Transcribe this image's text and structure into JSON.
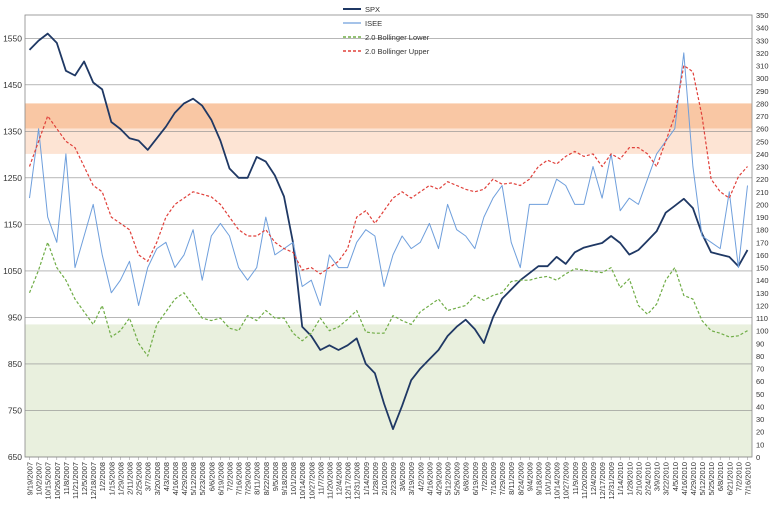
{
  "chart_data": {
    "type": "line",
    "x_dates": [
      "9/19/2007",
      "10/2/2007",
      "10/15/2007",
      "10/26/2007",
      "11/8/2007",
      "11/21/2007",
      "12/5/2007",
      "12/18/2007",
      "1/2/2008",
      "1/15/2008",
      "1/29/2008",
      "2/11/2008",
      "2/25/2008",
      "3/7/2008",
      "3/20/2008",
      "4/3/2008",
      "4/16/2008",
      "4/29/2008",
      "5/12/2008",
      "5/23/2008",
      "6/6/2008",
      "6/19/2008",
      "7/2/2008",
      "7/16/2008",
      "7/29/2008",
      "8/11/2008",
      "8/22/2008",
      "9/5/2008",
      "9/18/2008",
      "10/1/2008",
      "10/14/2008",
      "10/27/2008",
      "11/7/2008",
      "11/20/2008",
      "12/4/2008",
      "12/17/2008",
      "12/31/2008",
      "1/14/2009",
      "1/28/2009",
      "2/10/2009",
      "2/23/2009",
      "3/6/2009",
      "3/19/2009",
      "4/2/2009",
      "4/16/2009",
      "4/29/2009",
      "5/12/2009",
      "5/26/2009",
      "6/8/2009",
      "6/19/2009",
      "7/2/2009",
      "7/16/2009",
      "7/29/2009",
      "8/11/2009",
      "8/24/2009",
      "9/4/2009",
      "9/18/2009",
      "10/1/2009",
      "10/14/2009",
      "10/27/2009",
      "11/9/2009",
      "11/20/2009",
      "12/4/2009",
      "12/17/2009",
      "12/31/2009",
      "1/14/2010",
      "1/28/2010",
      "2/10/2010",
      "2/24/2010",
      "3/9/2010",
      "3/22/2010",
      "4/5/2010",
      "4/16/2010",
      "4/29/2010",
      "5/12/2010",
      "5/25/2010",
      "6/8/2010",
      "6/21/2010",
      "7/2/2010",
      "7/16/2010"
    ],
    "left_axis": {
      "ylim": [
        650,
        1600
      ],
      "ticks": [
        650,
        750,
        850,
        950,
        1050,
        1150,
        1250,
        1350,
        1450,
        1550
      ]
    },
    "right_axis": {
      "ylim": [
        0,
        350
      ],
      "ticks": [
        0,
        10,
        20,
        30,
        40,
        50,
        60,
        70,
        80,
        90,
        100,
        110,
        120,
        130,
        140,
        150,
        160,
        170,
        180,
        190,
        200,
        210,
        220,
        230,
        240,
        250,
        260,
        270,
        280,
        290,
        300,
        310,
        320,
        330,
        340,
        350
      ]
    },
    "bands": [
      {
        "axis": "right",
        "from": 260,
        "to": 280,
        "color": "#f9c7a4"
      },
      {
        "axis": "right",
        "from": 240,
        "to": 260,
        "color": "#fde4d4"
      },
      {
        "axis": "right",
        "from": 0,
        "to": 105,
        "color": "#e9f0de"
      }
    ],
    "series": [
      {
        "name": "SPX",
        "axis": "left",
        "color": "#1f3864",
        "width": 1.8,
        "dash": "",
        "values": [
          1525,
          1545,
          1560,
          1540,
          1480,
          1470,
          1500,
          1455,
          1440,
          1370,
          1355,
          1335,
          1330,
          1310,
          1335,
          1360,
          1390,
          1410,
          1420,
          1405,
          1375,
          1330,
          1270,
          1250,
          1250,
          1295,
          1285,
          1255,
          1210,
          1110,
          930,
          910,
          880,
          890,
          880,
          890,
          905,
          850,
          830,
          765,
          710,
          760,
          815,
          840,
          860,
          880,
          910,
          930,
          945,
          925,
          895,
          950,
          990,
          1010,
          1030,
          1045,
          1060,
          1060,
          1080,
          1065,
          1090,
          1100,
          1105,
          1110,
          1125,
          1110,
          1085,
          1095,
          1115,
          1135,
          1175,
          1190,
          1205,
          1185,
          1130,
          1090,
          1085,
          1080,
          1060,
          1095
        ]
      },
      {
        "name": "ISEE",
        "axis": "right",
        "color": "#6f9fdc",
        "width": 1,
        "dash": "",
        "values": [
          205,
          260,
          190,
          170,
          240,
          150,
          175,
          200,
          160,
          130,
          140,
          155,
          120,
          150,
          165,
          170,
          150,
          160,
          180,
          140,
          175,
          185,
          175,
          150,
          140,
          150,
          190,
          160,
          165,
          170,
          135,
          140,
          120,
          160,
          150,
          150,
          170,
          180,
          175,
          135,
          160,
          175,
          165,
          170,
          185,
          165,
          200,
          180,
          175,
          165,
          190,
          205,
          215,
          170,
          150,
          200,
          200,
          200,
          220,
          215,
          200,
          200,
          230,
          205,
          240,
          195,
          205,
          200,
          220,
          240,
          250,
          260,
          320,
          230,
          175,
          170,
          165,
          210,
          150,
          215
        ]
      },
      {
        "name": "2.0 Bollinger Lower",
        "axis": "right",
        "color": "#70ad47",
        "width": 1.2,
        "dash": "3,2",
        "values": [
          130,
          148,
          170,
          150,
          140,
          125,
          115,
          105,
          120,
          95,
          100,
          110,
          90,
          80,
          105,
          115,
          125,
          130,
          120,
          110,
          108,
          110,
          102,
          100,
          112,
          108,
          116,
          110,
          110,
          98,
          92,
          98,
          110,
          100,
          103,
          109,
          116,
          99,
          98,
          98,
          112,
          108,
          105,
          115,
          120,
          125,
          116,
          118,
          120,
          128,
          124,
          128,
          130,
          139,
          140,
          140,
          142,
          143,
          140,
          145,
          149,
          148,
          147,
          146,
          150,
          134,
          141,
          120,
          113,
          121,
          140,
          150,
          128,
          125,
          108,
          100,
          98,
          95,
          96,
          100
        ]
      },
      {
        "name": "2.0 Bollinger Upper",
        "axis": "right",
        "color": "#e0403a",
        "width": 1.2,
        "dash": "3,2",
        "values": [
          230,
          250,
          270,
          260,
          250,
          245,
          230,
          215,
          210,
          190,
          185,
          180,
          160,
          155,
          170,
          190,
          200,
          205,
          210,
          208,
          206,
          200,
          190,
          180,
          175,
          175,
          180,
          170,
          165,
          162,
          148,
          150,
          145,
          150,
          155,
          165,
          190,
          195,
          185,
          195,
          205,
          210,
          205,
          210,
          215,
          212,
          218,
          215,
          212,
          210,
          212,
          220,
          216,
          217,
          215,
          220,
          230,
          235,
          232,
          238,
          242,
          238,
          240,
          230,
          240,
          236,
          245,
          245,
          240,
          230,
          250,
          270,
          310,
          305,
          270,
          220,
          210,
          205,
          222,
          230
        ]
      }
    ]
  }
}
